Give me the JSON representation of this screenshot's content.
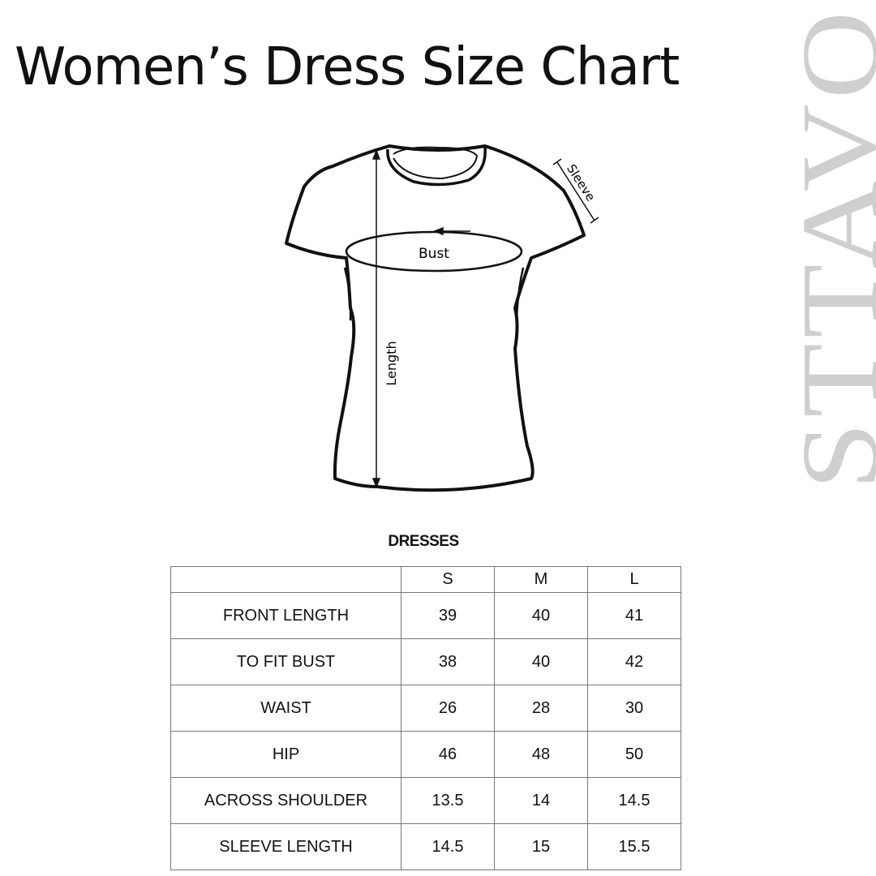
{
  "title": "Women’s Dress Size Chart",
  "brand_watermark": "STTAVOSS",
  "diagram": {
    "labels": {
      "sleeve": "Sleeve",
      "bust": "Bust",
      "length": "Length"
    }
  },
  "table": {
    "caption": "DRESSES",
    "columns": [
      "",
      "S",
      "M",
      "L"
    ],
    "rows": [
      {
        "label": "FRONT LENGTH",
        "values": [
          "39",
          "40",
          "41"
        ]
      },
      {
        "label": "TO FIT BUST",
        "values": [
          "38",
          "40",
          "42"
        ]
      },
      {
        "label": "WAIST",
        "values": [
          "26",
          "28",
          "30"
        ]
      },
      {
        "label": "HIP",
        "values": [
          "46",
          "48",
          "50"
        ]
      },
      {
        "label": "ACROSS SHOULDER",
        "values": [
          "13.5",
          "14",
          "14.5"
        ]
      },
      {
        "label": "SLEEVE LENGTH",
        "values": [
          "14.5",
          "15",
          "15.5"
        ]
      }
    ]
  }
}
